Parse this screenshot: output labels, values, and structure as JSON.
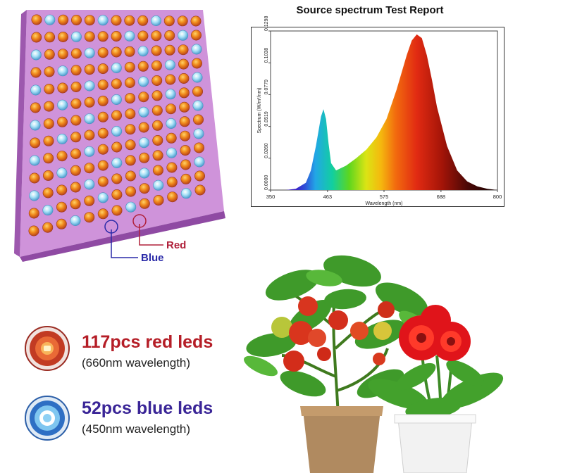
{
  "spectrum": {
    "title": "Source spectrum Test Report",
    "chart_data": {
      "type": "area",
      "title": "Source spectrum Test Report",
      "xlabel": "Wavelength (nm)",
      "ylabel": "Spectrum (W/m²/nm)",
      "xlim": [
        350,
        800
      ],
      "ylim": [
        0,
        0.1298
      ],
      "x_ticks": [
        "350",
        "463",
        "575",
        "688",
        "800"
      ],
      "y_ticks": [
        "0.0000",
        "0.0260",
        "0.0519",
        "0.0779",
        "0.1038",
        "0.1298"
      ],
      "grid": false,
      "series": [
        {
          "x": [
            380,
            400,
            420,
            430,
            440,
            450,
            455,
            460,
            465,
            470,
            480,
            500,
            520,
            540,
            560,
            580,
            600,
            620,
            630,
            640,
            650,
            660,
            670,
            680,
            700,
            720,
            740,
            760,
            780,
            800
          ],
          "values": [
            0,
            0.001,
            0.006,
            0.016,
            0.036,
            0.06,
            0.066,
            0.058,
            0.038,
            0.022,
            0.016,
            0.02,
            0.026,
            0.033,
            0.043,
            0.058,
            0.082,
            0.11,
            0.122,
            0.127,
            0.124,
            0.11,
            0.09,
            0.068,
            0.036,
            0.016,
            0.007,
            0.003,
            0.001,
            0
          ]
        }
      ]
    }
  },
  "panel": {
    "callout_red": "Red",
    "callout_blue": "Blue"
  },
  "legend": {
    "red_title": "117pcs red leds",
    "red_sub": "(660nm wavelength)",
    "blue_title": "52pcs blue leds",
    "blue_sub": "(450nm wavelength)"
  },
  "colors": {
    "red_led": "#e0651a",
    "blue_led": "#6cc8ef",
    "panel": "#c98ad6",
    "red_text": "#b51e27",
    "blue_text": "#3a2597"
  },
  "icons": [
    "red-led-icon",
    "blue-led-icon",
    "tomato-plant-icon",
    "red-gerbera-icon"
  ]
}
